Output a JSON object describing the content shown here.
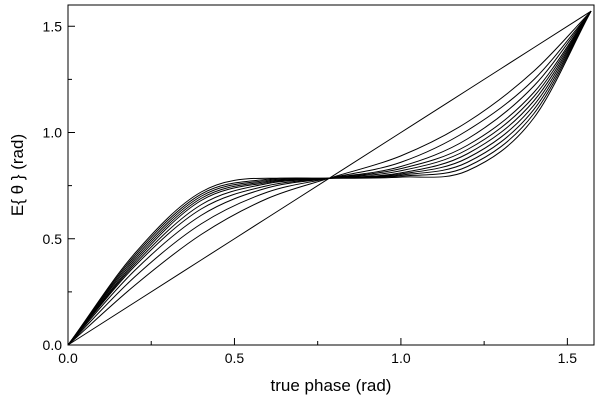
{
  "chart_data": {
    "type": "line",
    "title": "",
    "xlabel": "true phase (rad)",
    "ylabel": "E{ θ } (rad)",
    "xlim": [
      0,
      1.58
    ],
    "ylim": [
      0,
      1.6
    ],
    "x_ticks": [
      {
        "value": 0.0,
        "label": "0.0"
      },
      {
        "value": 0.5,
        "label": "0.5"
      },
      {
        "value": 1.0,
        "label": "1.0"
      },
      {
        "value": 1.5,
        "label": "1.5"
      }
    ],
    "x_minor_ticks": [
      0.25,
      0.75,
      1.25
    ],
    "y_ticks": [
      {
        "value": 0.0,
        "label": "0.0"
      },
      {
        "value": 0.5,
        "label": "0.5"
      },
      {
        "value": 1.0,
        "label": "1.0"
      },
      {
        "value": 1.5,
        "label": "1.5"
      }
    ],
    "y_minor_ticks": [
      0.25,
      0.75,
      1.25
    ],
    "grid": false,
    "line_color": "#000000",
    "series": [
      {
        "x": [
          0,
          0.2,
          0.4,
          0.6,
          0.785,
          1.0,
          1.2,
          1.4,
          1.571
        ],
        "y": [
          0,
          0.2,
          0.4,
          0.6,
          0.785,
          1.0,
          1.2,
          1.4,
          1.571
        ]
      },
      {
        "x": [
          0,
          0.2,
          0.4,
          0.6,
          0.785,
          1.0,
          1.2,
          1.4,
          1.571
        ],
        "y": [
          0,
          0.28,
          0.52,
          0.69,
          0.785,
          0.89,
          1.05,
          1.29,
          1.571
        ]
      },
      {
        "x": [
          0,
          0.2,
          0.4,
          0.6,
          0.785,
          1.0,
          1.2,
          1.4,
          1.571
        ],
        "y": [
          0,
          0.32,
          0.57,
          0.72,
          0.785,
          0.86,
          1.01,
          1.25,
          1.571
        ]
      },
      {
        "x": [
          0,
          0.2,
          0.4,
          0.6,
          0.785,
          1.0,
          1.2,
          1.4,
          1.571
        ],
        "y": [
          0,
          0.35,
          0.61,
          0.74,
          0.785,
          0.84,
          0.97,
          1.22,
          1.571
        ]
      },
      {
        "x": [
          0,
          0.2,
          0.4,
          0.6,
          0.785,
          1.0,
          1.2,
          1.4,
          1.571
        ],
        "y": [
          0,
          0.37,
          0.64,
          0.75,
          0.785,
          0.83,
          0.94,
          1.19,
          1.571
        ]
      },
      {
        "x": [
          0,
          0.2,
          0.4,
          0.6,
          0.785,
          1.0,
          1.2,
          1.4,
          1.571
        ],
        "y": [
          0,
          0.38,
          0.66,
          0.76,
          0.785,
          0.82,
          0.92,
          1.17,
          1.571
        ]
      },
      {
        "x": [
          0,
          0.2,
          0.4,
          0.6,
          0.785,
          1.0,
          1.2,
          1.4,
          1.571
        ],
        "y": [
          0,
          0.39,
          0.68,
          0.765,
          0.785,
          0.81,
          0.9,
          1.15,
          1.571
        ]
      },
      {
        "x": [
          0,
          0.2,
          0.4,
          0.6,
          0.785,
          1.0,
          1.2,
          1.4,
          1.571
        ],
        "y": [
          0,
          0.4,
          0.69,
          0.77,
          0.785,
          0.805,
          0.88,
          1.13,
          1.571
        ]
      },
      {
        "x": [
          0,
          0.2,
          0.4,
          0.6,
          0.785,
          1.0,
          1.2,
          1.4,
          1.571
        ],
        "y": [
          0,
          0.41,
          0.7,
          0.775,
          0.785,
          0.8,
          0.86,
          1.11,
          1.571
        ]
      },
      {
        "x": [
          0,
          0.2,
          0.4,
          0.6,
          0.785,
          1.0,
          1.2,
          1.4,
          1.571
        ],
        "y": [
          0,
          0.42,
          0.71,
          0.78,
          0.785,
          0.795,
          0.84,
          1.09,
          1.571
        ]
      },
      {
        "x": [
          0,
          0.2,
          0.4,
          0.6,
          0.785,
          1.0,
          1.2,
          1.4,
          1.571
        ],
        "y": [
          0,
          0.43,
          0.72,
          0.785,
          0.785,
          0.79,
          0.82,
          1.07,
          1.571
        ]
      }
    ]
  }
}
